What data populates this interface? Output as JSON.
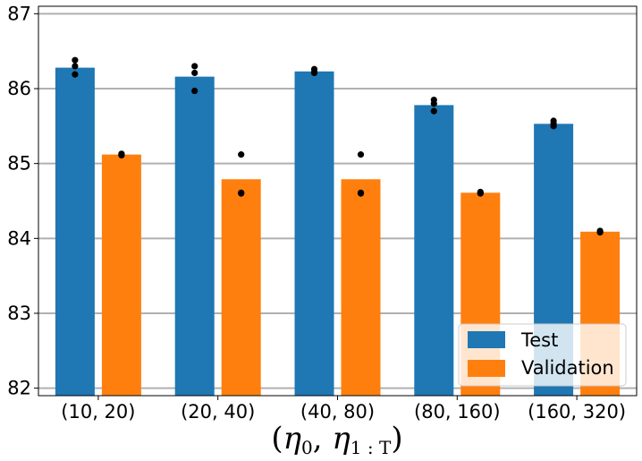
{
  "chart_data": {
    "type": "bar",
    "title": "",
    "xlabel": {
      "symbol1": "η",
      "sub1": "0",
      "separator": ", ",
      "symbol2": "η",
      "sub2": "1 : T",
      "open": "(",
      "close": ")"
    },
    "ylabel": "",
    "ylim": [
      81.9,
      87.1
    ],
    "yticks": [
      82,
      83,
      84,
      85,
      86,
      87
    ],
    "grid": "horizontal",
    "categories": [
      "(10, 20)",
      "(20, 40)",
      "(40, 80)",
      "(80, 160)",
      "(160, 320)"
    ],
    "series": [
      {
        "name": "Test",
        "color": "#1f77b4",
        "values": [
          86.28,
          86.16,
          86.23,
          85.78,
          85.53
        ],
        "points": [
          [
            86.38,
            86.3,
            86.19
          ],
          [
            86.3,
            86.21,
            85.97
          ],
          [
            86.26,
            86.22,
            86.21
          ],
          [
            85.85,
            85.8,
            85.7
          ],
          [
            85.57,
            85.53,
            85.5
          ]
        ]
      },
      {
        "name": "Validation",
        "color": "#ff7f0e",
        "values": [
          85.12,
          84.79,
          84.79,
          84.61,
          84.09
        ],
        "points": [
          [
            85.13,
            85.12,
            85.11
          ],
          [
            85.12,
            84.61,
            84.6
          ],
          [
            85.12,
            84.61,
            84.6
          ],
          [
            84.62,
            84.61,
            84.6
          ],
          [
            84.1,
            84.09,
            84.08
          ]
        ]
      }
    ],
    "legend": {
      "position": "bottom-right"
    }
  }
}
